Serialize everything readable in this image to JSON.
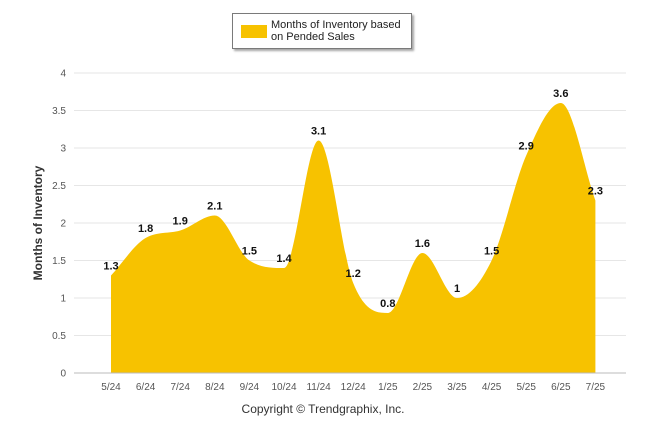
{
  "chart_data": {
    "type": "area",
    "categories": [
      "5/24",
      "6/24",
      "7/24",
      "8/24",
      "9/24",
      "10/24",
      "11/24",
      "12/24",
      "1/25",
      "2/25",
      "3/25",
      "4/25",
      "5/25",
      "6/25",
      "7/25"
    ],
    "series": [
      {
        "name": "Months of Inventory based on Pended Sales",
        "values": [
          1.3,
          1.8,
          1.9,
          2.1,
          1.5,
          1.4,
          3.1,
          1.2,
          0.8,
          1.6,
          1,
          1.5,
          2.9,
          3.6,
          2.3
        ]
      }
    ],
    "ylabel": "Months of Inventory",
    "ylim": [
      0,
      4
    ],
    "yticks": [
      "0",
      "0.5",
      "1",
      "1.5",
      "2",
      "2.5",
      "3",
      "3.5",
      "4"
    ],
    "grid": true,
    "legend_position": "top-center",
    "colors": {
      "area": "#f7c200",
      "grid": "#e6e6e6",
      "axis": "#bbbbbb"
    }
  },
  "legend": {
    "label_line1": "Months of Inventory based",
    "label_line2": "on Pended Sales"
  },
  "copyright": "Copyright © Trendgraphix, Inc."
}
